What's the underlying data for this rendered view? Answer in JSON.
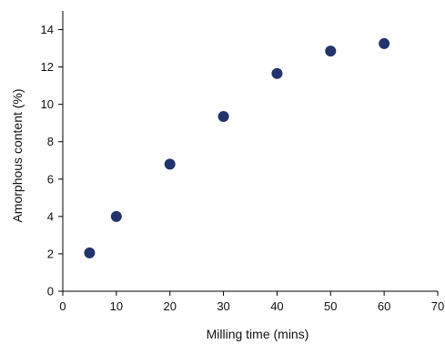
{
  "chart_data": {
    "type": "scatter",
    "title": "",
    "xlabel": "Milling time (mins)",
    "ylabel": "Amorphous content (%)",
    "xlim": [
      0,
      70
    ],
    "ylim": [
      0,
      15
    ],
    "x_ticks": [
      0,
      10,
      20,
      30,
      40,
      50,
      60,
      70
    ],
    "y_ticks": [
      0,
      2,
      4,
      6,
      8,
      10,
      12,
      14
    ],
    "grid": false,
    "legend": "none",
    "marker_color": "#22346b",
    "series": [
      {
        "x": [
          5,
          10,
          20,
          30,
          40,
          50,
          60
        ],
        "y": [
          2.05,
          4.0,
          6.8,
          9.35,
          11.65,
          12.85,
          13.25
        ]
      }
    ]
  }
}
